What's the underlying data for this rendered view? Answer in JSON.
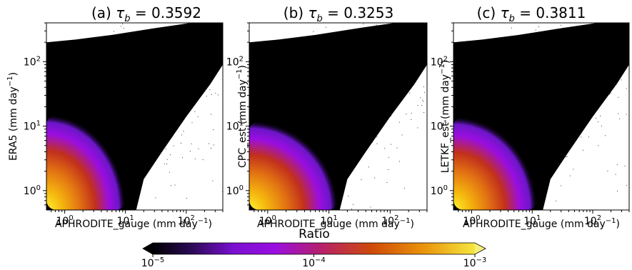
{
  "figure": {
    "colorbar": {
      "label": "Ratio",
      "scale": "log",
      "range": [
        1e-05,
        0.001
      ],
      "extend": "both",
      "colormap": "gnuplot",
      "ticks": [
        {
          "base": "10",
          "exp": "−5"
        },
        {
          "base": "10",
          "exp": "−4"
        },
        {
          "base": "10",
          "exp": "−3"
        }
      ]
    },
    "tick_labels": [
      {
        "base": "10",
        "exp": "0"
      },
      {
        "base": "10",
        "exp": "1"
      },
      {
        "base": "10",
        "exp": "2"
      }
    ],
    "xlabel": {
      "main": "APHRODITE_gauge (mm day",
      "exp": "−1",
      "close": ")"
    }
  },
  "chart_data": [
    {
      "type": "heatmap",
      "panel": "(a)",
      "title": {
        "prefix": "(a) ",
        "symbol": "τ",
        "sub": "b",
        "value": " = 0.3592"
      },
      "xlabel": "APHRODITE_gauge (mm day−1)",
      "ylabel": {
        "main": "ERA5 (mm day",
        "exp": "−1",
        "close": ")"
      },
      "xscale": "log",
      "yscale": "log",
      "xlim": [
        0.5,
        400
      ],
      "ylim": [
        0.5,
        400
      ],
      "tau_b": 0.3592,
      "dense_core": {
        "x_extent": 10,
        "y_extent": 15
      }
    },
    {
      "type": "heatmap",
      "panel": "(b)",
      "title": {
        "prefix": "(b) ",
        "symbol": "τ",
        "sub": "b",
        "value": " = 0.3253"
      },
      "xlabel": "APHRODITE_gauge (mm day−1)",
      "ylabel": {
        "main": "CPC_est (mm day",
        "exp": "−1",
        "close": ")"
      },
      "xscale": "log",
      "yscale": "log",
      "xlim": [
        0.5,
        400
      ],
      "ylim": [
        0.5,
        400
      ],
      "tau_b": 0.3253,
      "dense_core": {
        "x_extent": 14,
        "y_extent": 12
      }
    },
    {
      "type": "heatmap",
      "panel": "(c)",
      "title": {
        "prefix": "(c) ",
        "symbol": "τ",
        "sub": "b",
        "value": " = 0.3811"
      },
      "xlabel": "APHRODITE_gauge (mm day−1)",
      "ylabel": {
        "main": "LETKF_est (mm day",
        "exp": "−1",
        "close": ")"
      },
      "xscale": "log",
      "yscale": "log",
      "xlim": [
        0.5,
        400
      ],
      "ylim": [
        0.5,
        400
      ],
      "tau_b": 0.3811,
      "dense_core": {
        "x_extent": 12,
        "y_extent": 14
      }
    }
  ]
}
